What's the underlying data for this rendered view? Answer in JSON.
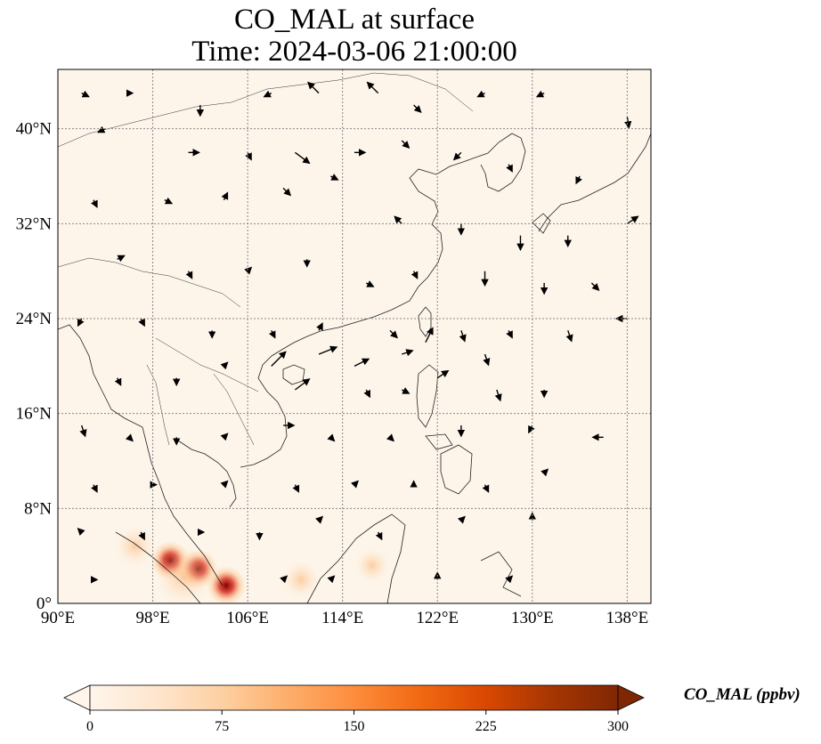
{
  "title_line1": "CO_MAL at surface",
  "title_line2": "Time: 2024-03-06 21:00:00",
  "colorbar": {
    "label": "CO_MAL (ppbv)",
    "ticks": [
      "0",
      "75",
      "150",
      "225",
      "300"
    ],
    "min": 0,
    "max": 300,
    "colors": [
      "#fff5eb",
      "#fee6ce",
      "#fdd0a2",
      "#fdae6b",
      "#fd8d3c",
      "#f16913",
      "#d94801",
      "#a63603",
      "#7f2704"
    ]
  },
  "map": {
    "lon_range": [
      90,
      140
    ],
    "lat_range": [
      0,
      45
    ],
    "lon_ticks": [
      {
        "lon": 90,
        "label": "90°E"
      },
      {
        "lon": 98,
        "label": "98°E"
      },
      {
        "lon": 106,
        "label": "106°E"
      },
      {
        "lon": 114,
        "label": "114°E"
      },
      {
        "lon": 122,
        "label": "122°E"
      },
      {
        "lon": 130,
        "label": "130°E"
      },
      {
        "lon": 138,
        "label": "138°E"
      }
    ],
    "lat_ticks": [
      {
        "lat": 0,
        "label": "0°"
      },
      {
        "lat": 8,
        "label": "8°N"
      },
      {
        "lat": 16,
        "label": "16°N"
      },
      {
        "lat": 24,
        "label": "24°N"
      },
      {
        "lat": 32,
        "label": "32°N"
      },
      {
        "lat": 40,
        "label": "40°N"
      }
    ],
    "background_color": "#fdf5ea",
    "coastline_color": "#222222",
    "gridline_color": "#888888",
    "hotspots": [
      {
        "lon": 99.5,
        "lat": 3.6,
        "value": 290
      },
      {
        "lon": 101.8,
        "lat": 2.9,
        "value": 280
      },
      {
        "lon": 104.2,
        "lat": 1.5,
        "value": 260
      },
      {
        "lon": 100.6,
        "lat": 2.2,
        "value": 150
      },
      {
        "lon": 96.5,
        "lat": 4.8,
        "value": 70
      },
      {
        "lon": 110.5,
        "lat": 2.0,
        "value": 60
      },
      {
        "lon": 116.5,
        "lat": 3.2,
        "value": 45
      }
    ],
    "wind_vectors": [
      {
        "lon": 92,
        "lat": 43,
        "u": 2,
        "v": -1
      },
      {
        "lon": 96,
        "lat": 43,
        "u": 1,
        "v": 0
      },
      {
        "lon": 102,
        "lat": 42,
        "u": 0,
        "v": -3
      },
      {
        "lon": 108,
        "lat": 43,
        "u": -2,
        "v": -1
      },
      {
        "lon": 112,
        "lat": 43,
        "u": -3,
        "v": 3
      },
      {
        "lon": 117,
        "lat": 43,
        "u": -3,
        "v": 3
      },
      {
        "lon": 120,
        "lat": 42,
        "u": 2,
        "v": -2
      },
      {
        "lon": 126,
        "lat": 43,
        "u": -2,
        "v": -1
      },
      {
        "lon": 131,
        "lat": 43,
        "u": -2,
        "v": -1
      },
      {
        "lon": 138,
        "lat": 41,
        "u": 0.5,
        "v": -3
      },
      {
        "lon": 94,
        "lat": 40,
        "u": -2,
        "v": -1
      },
      {
        "lon": 101,
        "lat": 38,
        "u": 3,
        "v": 0
      },
      {
        "lon": 106,
        "lat": 38,
        "u": 1,
        "v": -2
      },
      {
        "lon": 110,
        "lat": 38,
        "u": 4,
        "v": -3
      },
      {
        "lon": 115,
        "lat": 38,
        "u": 3,
        "v": 0
      },
      {
        "lon": 119,
        "lat": 39,
        "u": 2,
        "v": -2
      },
      {
        "lon": 124,
        "lat": 38,
        "u": -2,
        "v": -2
      },
      {
        "lon": 128,
        "lat": 37,
        "u": 1,
        "v": -2
      },
      {
        "lon": 134,
        "lat": 36,
        "u": -1,
        "v": -2
      },
      {
        "lon": 93,
        "lat": 34,
        "u": 1,
        "v": -2
      },
      {
        "lon": 99,
        "lat": 34,
        "u": 2,
        "v": -1
      },
      {
        "lon": 104,
        "lat": 34,
        "u": 1,
        "v": 2
      },
      {
        "lon": 109,
        "lat": 35,
        "u": 2,
        "v": -2
      },
      {
        "lon": 113,
        "lat": 36,
        "u": 2,
        "v": -1
      },
      {
        "lon": 119,
        "lat": 32,
        "u": -2,
        "v": 2
      },
      {
        "lon": 124,
        "lat": 32,
        "u": 0,
        "v": -3
      },
      {
        "lon": 129,
        "lat": 31,
        "u": 0,
        "v": -4
      },
      {
        "lon": 133,
        "lat": 31,
        "u": 0,
        "v": -3
      },
      {
        "lon": 138,
        "lat": 32,
        "u": 3,
        "v": 2
      },
      {
        "lon": 95,
        "lat": 29,
        "u": 2,
        "v": 1
      },
      {
        "lon": 101,
        "lat": 28,
        "u": 1,
        "v": -2
      },
      {
        "lon": 106,
        "lat": 28,
        "u": 1,
        "v": 1
      },
      {
        "lon": 111,
        "lat": 29,
        "u": 0,
        "v": -2
      },
      {
        "lon": 116,
        "lat": 27,
        "u": 2,
        "v": -1
      },
      {
        "lon": 120,
        "lat": 28,
        "u": 1,
        "v": -2
      },
      {
        "lon": 126,
        "lat": 28,
        "u": 0,
        "v": -4
      },
      {
        "lon": 131,
        "lat": 27,
        "u": 0,
        "v": -3
      },
      {
        "lon": 135,
        "lat": 27,
        "u": 2,
        "v": -2
      },
      {
        "lon": 92,
        "lat": 24,
        "u": -1,
        "v": -2
      },
      {
        "lon": 97,
        "lat": 24,
        "u": 1,
        "v": -2
      },
      {
        "lon": 103,
        "lat": 23,
        "u": 0,
        "v": -2
      },
      {
        "lon": 108,
        "lat": 23,
        "u": 1,
        "v": -2
      },
      {
        "lon": 112,
        "lat": 23,
        "u": 1,
        "v": 2
      },
      {
        "lon": 118,
        "lat": 23,
        "u": 2,
        "v": -2
      },
      {
        "lon": 124,
        "lat": 23,
        "u": 1,
        "v": -3
      },
      {
        "lon": 128,
        "lat": 23,
        "u": 1,
        "v": -2
      },
      {
        "lon": 133,
        "lat": 23,
        "u": 1,
        "v": -3
      },
      {
        "lon": 138,
        "lat": 24,
        "u": -3,
        "v": 0
      },
      {
        "lon": 108,
        "lat": 20,
        "u": 4,
        "v": 4
      },
      {
        "lon": 112,
        "lat": 21,
        "u": 5,
        "v": 2
      },
      {
        "lon": 115,
        "lat": 20,
        "u": 4,
        "v": 2
      },
      {
        "lon": 119,
        "lat": 21,
        "u": 3,
        "v": 1
      },
      {
        "lon": 121,
        "lat": 22,
        "u": 2,
        "v": 4
      },
      {
        "lon": 126,
        "lat": 21,
        "u": 1,
        "v": -3
      },
      {
        "lon": 95,
        "lat": 19,
        "u": 1,
        "v": -2
      },
      {
        "lon": 100,
        "lat": 19,
        "u": 0,
        "v": -2
      },
      {
        "lon": 104,
        "lat": 20,
        "u": 1,
        "v": 1
      },
      {
        "lon": 110,
        "lat": 18,
        "u": 4,
        "v": 3
      },
      {
        "lon": 116,
        "lat": 18,
        "u": 1,
        "v": -2
      },
      {
        "lon": 119,
        "lat": 18,
        "u": 2,
        "v": -1
      },
      {
        "lon": 122,
        "lat": 19,
        "u": 3,
        "v": 2
      },
      {
        "lon": 127,
        "lat": 18,
        "u": 1,
        "v": -3
      },
      {
        "lon": 131,
        "lat": 18,
        "u": 0,
        "v": -2
      },
      {
        "lon": 92,
        "lat": 15,
        "u": 1,
        "v": -3
      },
      {
        "lon": 96,
        "lat": 14,
        "u": 1,
        "v": -1
      },
      {
        "lon": 100,
        "lat": 14,
        "u": 0,
        "v": -2
      },
      {
        "lon": 104,
        "lat": 14,
        "u": 1,
        "v": 1
      },
      {
        "lon": 109,
        "lat": 15,
        "u": 3,
        "v": 0
      },
      {
        "lon": 113,
        "lat": 14,
        "u": 1,
        "v": -1
      },
      {
        "lon": 118,
        "lat": 14,
        "u": 1,
        "v": -1
      },
      {
        "lon": 124,
        "lat": 15,
        "u": 0,
        "v": -3
      },
      {
        "lon": 130,
        "lat": 15,
        "u": -1,
        "v": -2
      },
      {
        "lon": 136,
        "lat": 14,
        "u": -3,
        "v": 0
      },
      {
        "lon": 93,
        "lat": 10,
        "u": 1,
        "v": -2
      },
      {
        "lon": 98,
        "lat": 10,
        "u": 1,
        "v": 0
      },
      {
        "lon": 104,
        "lat": 10,
        "u": 1,
        "v": 1
      },
      {
        "lon": 110,
        "lat": 10,
        "u": 1,
        "v": -2
      },
      {
        "lon": 115,
        "lat": 10,
        "u": 1,
        "v": 1
      },
      {
        "lon": 120,
        "lat": 10,
        "u": 0,
        "v": 1
      },
      {
        "lon": 126,
        "lat": 10,
        "u": 1,
        "v": -2
      },
      {
        "lon": 131,
        "lat": 11,
        "u": 1,
        "v": 1
      },
      {
        "lon": 92,
        "lat": 6,
        "u": -1,
        "v": 1
      },
      {
        "lon": 97,
        "lat": 6,
        "u": 1,
        "v": -2
      },
      {
        "lon": 102,
        "lat": 6,
        "u": 1,
        "v": 0
      },
      {
        "lon": 107,
        "lat": 6,
        "u": 0,
        "v": -2
      },
      {
        "lon": 112,
        "lat": 7,
        "u": 1,
        "v": 1
      },
      {
        "lon": 117,
        "lat": 6,
        "u": 1,
        "v": -2
      },
      {
        "lon": 124,
        "lat": 7,
        "u": 1,
        "v": 1
      },
      {
        "lon": 130,
        "lat": 7,
        "u": 0,
        "v": 2
      },
      {
        "lon": 93,
        "lat": 2,
        "u": 1,
        "v": 0
      },
      {
        "lon": 109,
        "lat": 2,
        "u": 1,
        "v": 1
      },
      {
        "lon": 113,
        "lat": 2,
        "u": 1,
        "v": 1
      },
      {
        "lon": 122,
        "lat": 2,
        "u": 0,
        "v": 2
      },
      {
        "lon": 128,
        "lat": 2,
        "u": 1,
        "v": 1
      }
    ]
  }
}
